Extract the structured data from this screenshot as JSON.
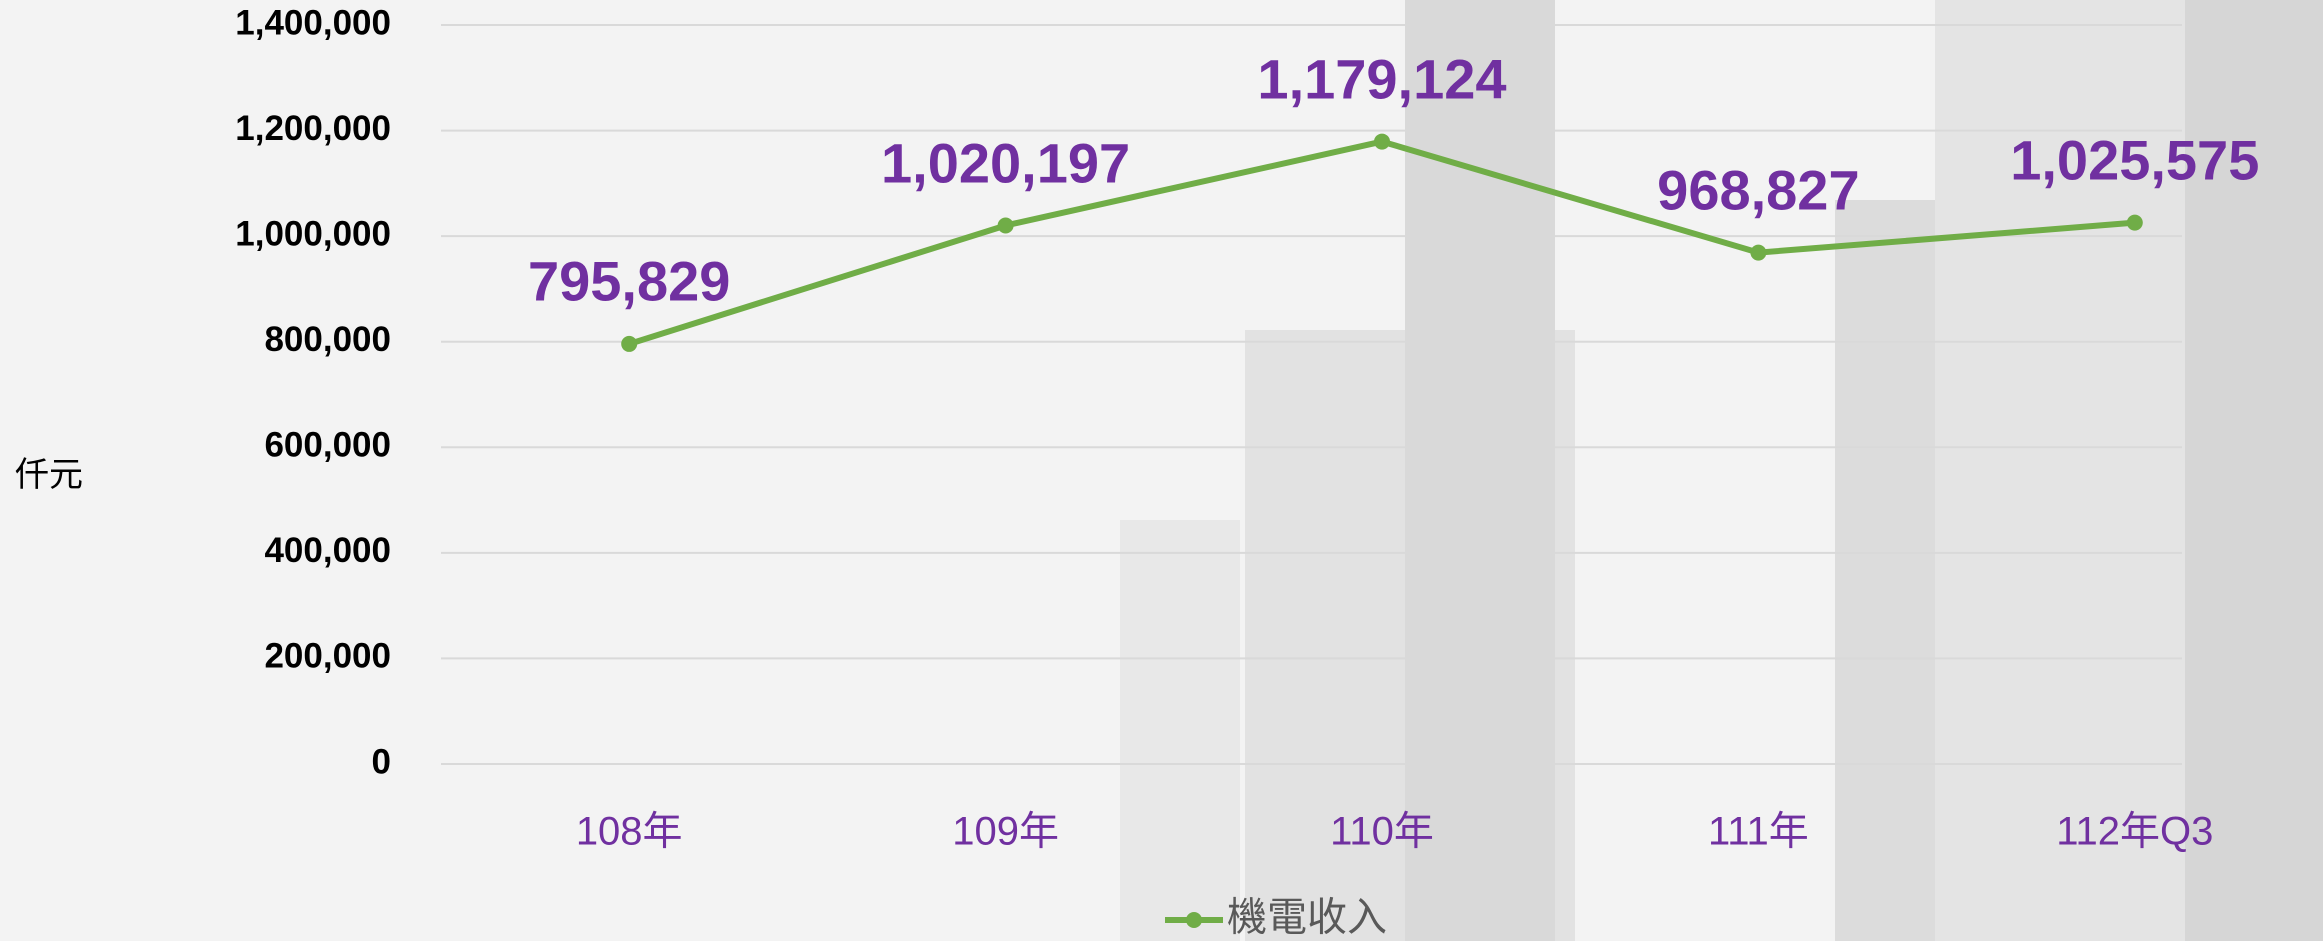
{
  "chart_data": {
    "type": "line",
    "y_label": "仟元",
    "categories": [
      "108年",
      "109年",
      "110年",
      "111年",
      "112年Q3"
    ],
    "series": [
      {
        "name": "機電收入",
        "color": "#70ad47",
        "values": [
          795829,
          1020197,
          1179124,
          968827,
          1025575
        ],
        "value_labels": [
          "795,829",
          "1,020,197",
          "1,179,124",
          "968,827",
          "1,025,575"
        ]
      }
    ],
    "ylim": [
      0,
      1400000
    ],
    "yticks": [
      0,
      {
        "value": 200000,
        "label": "200,000"
      },
      {
        "value": 400000,
        "label": "400,000"
      },
      {
        "value": 600000,
        "label": "600,000"
      },
      {
        "value": 800000,
        "label": "800,000"
      },
      {
        "value": 1000000,
        "label": "1,000,000"
      },
      {
        "value": 1200000,
        "label": "1,200,000"
      },
      {
        "value": 1400000,
        "label": "1,400,000"
      }
    ],
    "grid": true,
    "legend": "bottom"
  }
}
